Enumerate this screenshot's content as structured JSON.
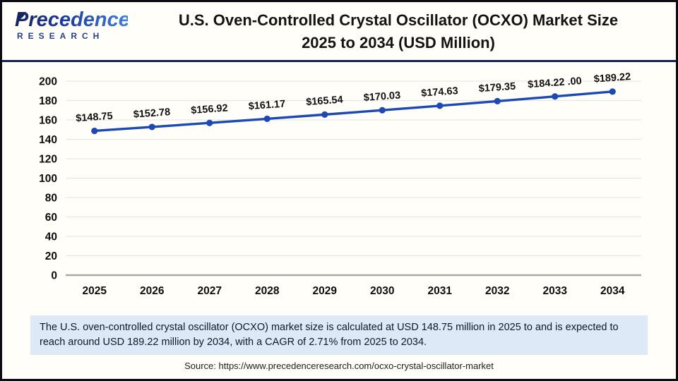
{
  "header": {
    "logo_line1": "Precedence",
    "logo_line2": "RESEARCH",
    "title_line1": "U.S. Oven-Controlled Crystal Oscillator (OCXO) Market Size",
    "title_line2": "2025 to 2034 (USD Million)"
  },
  "chart_data": {
    "type": "line",
    "categories": [
      "2025",
      "2026",
      "2027",
      "2028",
      "2029",
      "2030",
      "2031",
      "2032",
      "2033",
      "2034"
    ],
    "values": [
      148.75,
      152.78,
      156.92,
      161.17,
      165.54,
      170.03,
      174.63,
      179.35,
      184.22,
      189.22
    ],
    "point_labels": [
      "$148.75",
      "$152.78",
      "$156.92",
      "$161.17",
      "$165.54",
      "$170.03",
      "$174.63",
      "$179.35",
      "$184.22 .00",
      "$189.22"
    ],
    "title": "U.S. Oven-Controlled Crystal Oscillator (OCXO) Market Size 2025 to 2034 (USD Million)",
    "xlabel": "",
    "ylabel": "",
    "ylim": [
      0,
      200
    ],
    "ytick_step": 20,
    "grid": true,
    "legend": "none",
    "line_color": "#1d49b5",
    "grid_color": "#e7e7e7",
    "axis_color": "#a8a8a8",
    "tick_color": "#0d0d0d"
  },
  "footnote": {
    "text": "The U.S. oven-controlled crystal oscillator (OCXO) market size is calculated at USD 148.75 million in 2025 to and is expected to reach around USD 189.22 million by 2034, with a CAGR of 2.71% from 2025 to 2034."
  },
  "source": {
    "text": "Source: https://www.precedenceresearch.com/ocxo-crystal-oscillator-market"
  }
}
